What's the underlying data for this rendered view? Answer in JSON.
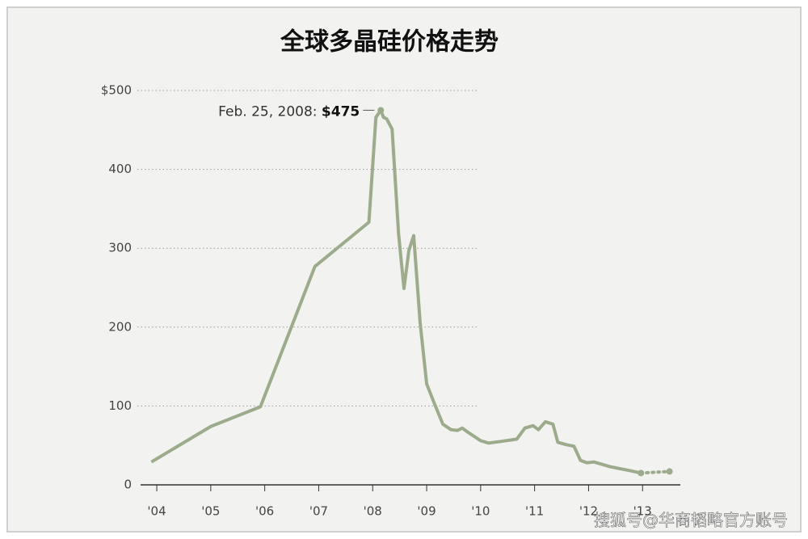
{
  "chart_data": {
    "type": "line",
    "title": "全球多晶硅价格走势",
    "x": [
      2003.9,
      2005.0,
      2005.92,
      2006.93,
      2007.93,
      2008.06,
      2008.15,
      2008.2,
      2008.26,
      2008.36,
      2008.48,
      2008.58,
      2008.67,
      2008.76,
      2008.88,
      2009.0,
      2009.15,
      2009.3,
      2009.45,
      2009.57,
      2009.66,
      2009.78,
      2010.0,
      2010.15,
      2010.37,
      2010.67,
      2010.82,
      2010.97,
      2011.07,
      2011.2,
      2011.34,
      2011.43,
      2011.58,
      2011.73,
      2011.85,
      2011.97,
      2012.1,
      2012.4,
      2012.77,
      2012.97,
      2013.5
    ],
    "series": [
      {
        "color": "#9dab8d",
        "values": [
          29,
          74,
          99,
          277,
          333,
          466,
          475,
          466,
          464,
          451,
          318,
          249,
          297,
          316,
          205,
          128,
          102,
          77,
          70,
          69,
          72,
          66,
          56,
          53,
          55,
          58,
          72,
          75,
          70,
          80,
          77,
          54,
          51,
          49,
          31,
          28,
          29,
          23,
          18,
          15,
          17
        ]
      }
    ],
    "xlim": [
      2003.7,
      2013.7
    ],
    "xticks": [
      {
        "value": 2004,
        "label": "'04"
      },
      {
        "value": 2005,
        "label": "'05"
      },
      {
        "value": 2006,
        "label": "'06"
      },
      {
        "value": 2007,
        "label": "'07"
      },
      {
        "value": 2008,
        "label": "'08"
      },
      {
        "value": 2009,
        "label": "'09"
      },
      {
        "value": 2010,
        "label": "'10"
      },
      {
        "value": 2011,
        "label": "'11"
      },
      {
        "value": 2012,
        "label": "'12"
      },
      {
        "value": 2013,
        "label": "'13"
      }
    ],
    "ylim": [
      0,
      500
    ],
    "yticks": [
      0,
      100,
      200,
      300,
      400,
      {
        "value": 500,
        "label": "$500"
      }
    ],
    "grid": true,
    "annotation": {
      "text": "Feb. 25, 2008:",
      "value": 475,
      "value_label": "$475"
    },
    "watermark": "搜狐号@华商韬略官方账号"
  }
}
